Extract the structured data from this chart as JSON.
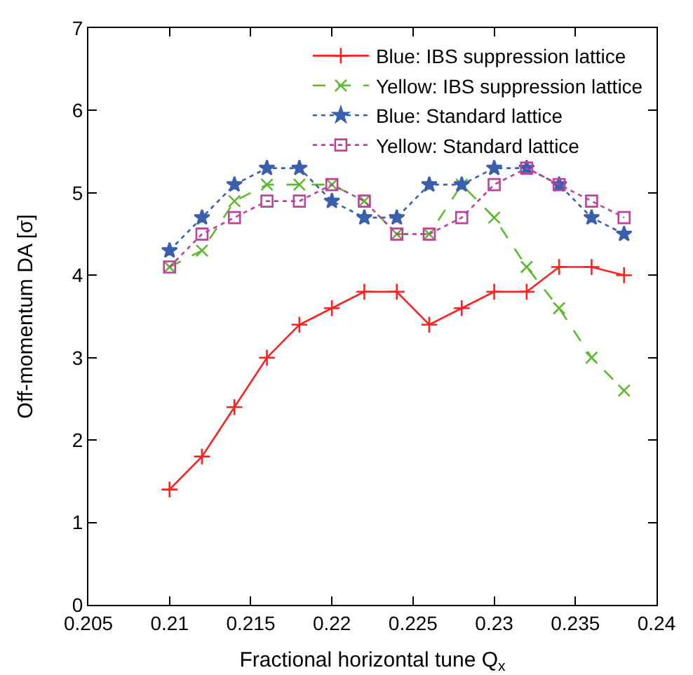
{
  "chart_data": {
    "type": "line",
    "xlabel": "Fractional horizontal tune Q$_{x}$",
    "ylabel": "Off-momentum DA [σ]",
    "x": [
      0.21,
      0.212,
      0.214,
      0.216,
      0.218,
      0.22,
      0.222,
      0.224,
      0.226,
      0.228,
      0.23,
      0.232,
      0.234,
      0.236,
      0.238
    ],
    "series": [
      {
        "name": "Blue: IBS suppression lattice",
        "color": "#ff2020",
        "marker": "cross",
        "line_style": "solid",
        "values": [
          1.4,
          1.8,
          2.4,
          3.0,
          3.4,
          3.6,
          3.8,
          3.8,
          3.4,
          3.6,
          3.8,
          3.8,
          4.1,
          4.1,
          4.0
        ]
      },
      {
        "name": "Yellow: IBS suppression lattice",
        "color": "#5fb832",
        "marker": "x",
        "line_style": "dashed",
        "values": [
          4.1,
          4.3,
          4.9,
          5.1,
          5.1,
          5.1,
          4.9,
          4.5,
          4.5,
          5.1,
          4.7,
          4.1,
          3.6,
          3.0,
          2.6
        ]
      },
      {
        "name": "Blue: Standard lattice",
        "color": "#3a5fad",
        "marker": "star",
        "line_style": "dotted",
        "values": [
          4.3,
          4.7,
          5.1,
          5.3,
          5.3,
          4.9,
          4.7,
          4.7,
          5.1,
          5.1,
          5.3,
          5.3,
          5.1,
          4.7,
          4.5
        ]
      },
      {
        "name": "Yellow: Standard lattice",
        "color": "#c040a0",
        "marker": "square",
        "line_style": "dotted",
        "values": [
          4.1,
          4.5,
          4.7,
          4.9,
          4.9,
          5.1,
          4.9,
          4.5,
          4.5,
          4.7,
          5.1,
          5.3,
          5.1,
          4.9,
          4.7
        ]
      }
    ],
    "xlim": [
      0.205,
      0.24
    ],
    "xticks": [
      0.205,
      0.21,
      0.215,
      0.22,
      0.225,
      0.23,
      0.235,
      0.24
    ],
    "ylim": [
      0,
      7
    ],
    "yticks": [
      0,
      1,
      2,
      3,
      4,
      5,
      6,
      7
    ],
    "grid": false,
    "legend": "top right"
  }
}
